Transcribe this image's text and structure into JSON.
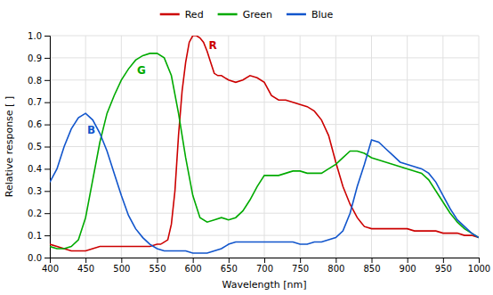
{
  "chart_data": {
    "type": "line",
    "xlabel": "Wavelength [nm]",
    "ylabel": "Relative response [ ]",
    "xlim": [
      400,
      1000
    ],
    "ylim": [
      0.0,
      1.0
    ],
    "xticks": [
      400,
      450,
      500,
      550,
      600,
      650,
      700,
      750,
      800,
      850,
      900,
      950,
      1000
    ],
    "yticks": [
      {
        "value": 0.0,
        "label": "0.0"
      },
      0.1,
      0.2,
      0.3,
      0.4,
      0.5,
      0.6,
      0.7,
      0.8,
      0.9,
      {
        "value": 1.0,
        "label": "1.0"
      }
    ],
    "grid": true,
    "legend": "top",
    "annotations": [
      {
        "text": "R",
        "x": 628,
        "y": 0.955,
        "color": "#cc0000"
      },
      {
        "text": "G",
        "x": 528,
        "y": 0.845,
        "color": "#00aa00"
      },
      {
        "text": "B",
        "x": 458,
        "y": 0.575,
        "color": "#1155cc"
      }
    ],
    "series": [
      {
        "name": "Red",
        "color": "#cc0000",
        "x": [
          400,
          410,
          420,
          430,
          440,
          450,
          460,
          470,
          480,
          490,
          500,
          510,
          520,
          530,
          540,
          550,
          555,
          560,
          565,
          570,
          575,
          580,
          585,
          590,
          595,
          600,
          605,
          610,
          615,
          620,
          625,
          630,
          635,
          640,
          645,
          650,
          660,
          670,
          680,
          690,
          700,
          710,
          720,
          730,
          740,
          750,
          760,
          770,
          780,
          790,
          800,
          810,
          820,
          825,
          830,
          835,
          840,
          850,
          860,
          870,
          880,
          890,
          900,
          910,
          920,
          930,
          940,
          950,
          960,
          970,
          980,
          990,
          1000
        ],
        "values": [
          0.06,
          0.05,
          0.04,
          0.03,
          0.03,
          0.03,
          0.04,
          0.05,
          0.05,
          0.05,
          0.05,
          0.05,
          0.05,
          0.05,
          0.05,
          0.06,
          0.06,
          0.07,
          0.08,
          0.15,
          0.3,
          0.55,
          0.75,
          0.88,
          0.97,
          1.0,
          1.0,
          0.99,
          0.97,
          0.93,
          0.88,
          0.83,
          0.82,
          0.82,
          0.81,
          0.8,
          0.79,
          0.8,
          0.82,
          0.81,
          0.79,
          0.73,
          0.71,
          0.71,
          0.7,
          0.69,
          0.68,
          0.66,
          0.62,
          0.55,
          0.43,
          0.32,
          0.24,
          0.21,
          0.18,
          0.16,
          0.14,
          0.13,
          0.13,
          0.13,
          0.13,
          0.13,
          0.13,
          0.12,
          0.12,
          0.12,
          0.12,
          0.11,
          0.11,
          0.11,
          0.1,
          0.1,
          0.09
        ]
      },
      {
        "name": "Green",
        "color": "#00aa00",
        "x": [
          400,
          410,
          420,
          430,
          440,
          450,
          460,
          470,
          480,
          490,
          500,
          510,
          520,
          530,
          540,
          550,
          560,
          570,
          580,
          590,
          600,
          610,
          620,
          630,
          640,
          650,
          660,
          670,
          680,
          690,
          700,
          710,
          720,
          730,
          740,
          750,
          760,
          770,
          780,
          790,
          800,
          810,
          820,
          830,
          840,
          850,
          860,
          870,
          880,
          890,
          900,
          910,
          920,
          930,
          940,
          950,
          960,
          970,
          980,
          990,
          1000
        ],
        "values": [
          0.05,
          0.04,
          0.04,
          0.05,
          0.08,
          0.18,
          0.35,
          0.52,
          0.65,
          0.73,
          0.8,
          0.85,
          0.89,
          0.91,
          0.92,
          0.92,
          0.9,
          0.82,
          0.65,
          0.45,
          0.28,
          0.18,
          0.16,
          0.17,
          0.18,
          0.17,
          0.18,
          0.21,
          0.26,
          0.32,
          0.37,
          0.37,
          0.37,
          0.38,
          0.39,
          0.39,
          0.38,
          0.38,
          0.38,
          0.4,
          0.42,
          0.45,
          0.48,
          0.48,
          0.47,
          0.45,
          0.44,
          0.43,
          0.42,
          0.41,
          0.4,
          0.39,
          0.38,
          0.35,
          0.3,
          0.25,
          0.2,
          0.16,
          0.13,
          0.11,
          0.09
        ]
      },
      {
        "name": "Blue",
        "color": "#1155cc",
        "x": [
          400,
          410,
          420,
          430,
          440,
          450,
          460,
          470,
          480,
          490,
          500,
          510,
          520,
          530,
          540,
          550,
          560,
          570,
          580,
          590,
          600,
          610,
          620,
          630,
          640,
          650,
          660,
          670,
          680,
          690,
          700,
          710,
          720,
          730,
          740,
          750,
          760,
          770,
          780,
          790,
          800,
          810,
          820,
          830,
          840,
          850,
          860,
          870,
          880,
          890,
          900,
          910,
          920,
          930,
          940,
          950,
          960,
          970,
          980,
          990,
          1000
        ],
        "values": [
          0.34,
          0.4,
          0.5,
          0.58,
          0.63,
          0.65,
          0.62,
          0.56,
          0.48,
          0.38,
          0.28,
          0.19,
          0.13,
          0.09,
          0.06,
          0.04,
          0.03,
          0.03,
          0.03,
          0.03,
          0.02,
          0.02,
          0.02,
          0.03,
          0.04,
          0.06,
          0.07,
          0.07,
          0.07,
          0.07,
          0.07,
          0.07,
          0.07,
          0.07,
          0.07,
          0.06,
          0.06,
          0.07,
          0.07,
          0.08,
          0.09,
          0.12,
          0.2,
          0.32,
          0.42,
          0.53,
          0.52,
          0.49,
          0.46,
          0.43,
          0.42,
          0.41,
          0.4,
          0.38,
          0.34,
          0.28,
          0.22,
          0.17,
          0.14,
          0.11,
          0.09
        ]
      }
    ]
  }
}
